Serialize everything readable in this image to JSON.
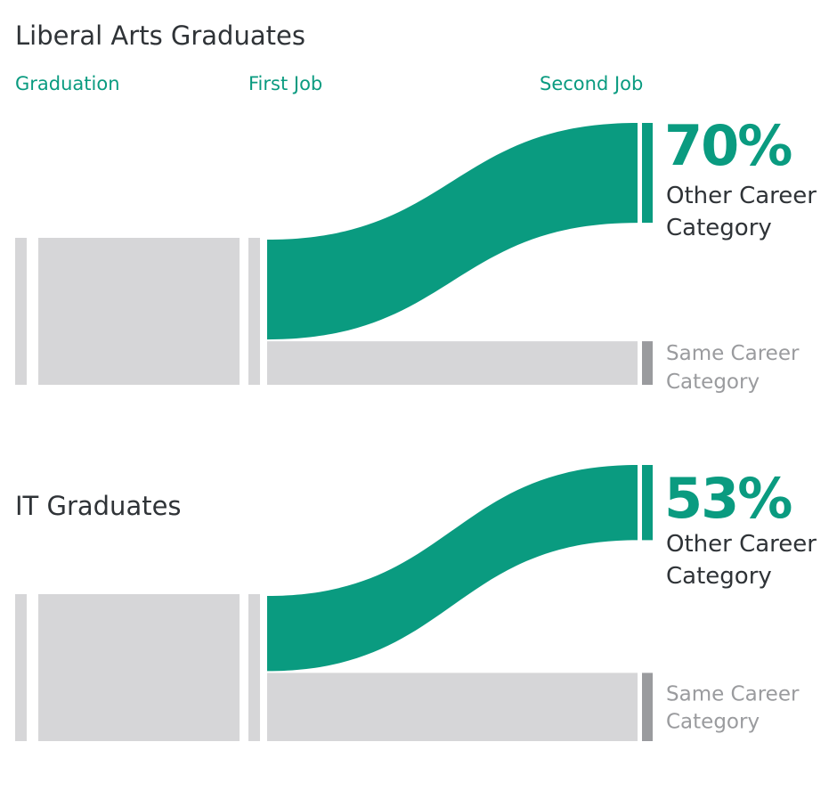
{
  "chart_data": [
    {
      "type": "sankey",
      "title": "Liberal Arts Graduates",
      "stages": [
        "Graduation",
        "First Job",
        "Second Job"
      ],
      "categories": [
        "Other Career Category",
        "Same Career Category"
      ],
      "values": [
        70,
        30
      ],
      "value_labels": [
        "70%",
        null
      ],
      "colors": [
        "#0a9b80",
        "#d6d6d8"
      ],
      "marker_colors": [
        "#0a9b80",
        "#9a9b9e"
      ]
    },
    {
      "type": "sankey",
      "title": "IT Graduates",
      "categories": [
        "Other Career Category",
        "Same Career Category"
      ],
      "values": [
        53,
        47
      ],
      "value_labels": [
        "53%",
        null
      ],
      "colors": [
        "#0a9b80",
        "#d6d6d8"
      ],
      "marker_colors": [
        "#0a9b80",
        "#9a9b9e"
      ]
    }
  ]
}
